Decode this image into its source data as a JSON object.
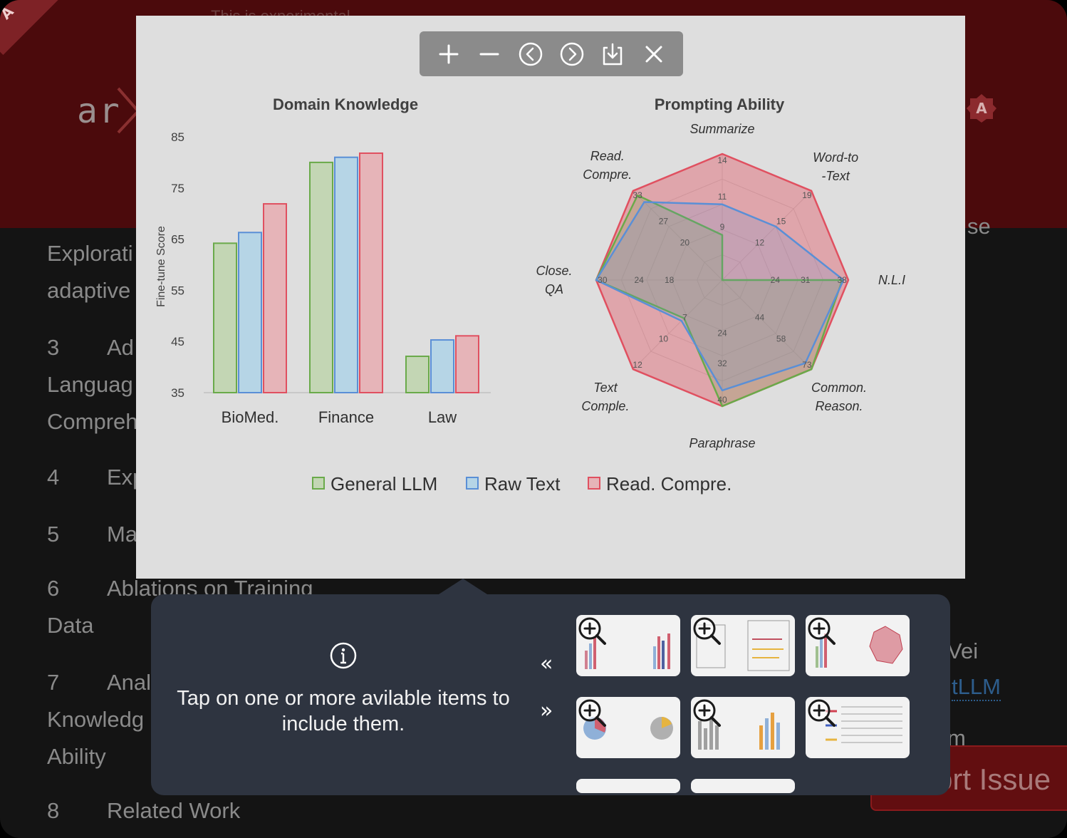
{
  "background_page": {
    "corner_badge": "A",
    "logo_text": "ar",
    "top_text": "This is experimental",
    "toc": [
      {
        "num": "",
        "lines": [
          "Explorati",
          "adaptive"
        ]
      },
      {
        "num": "3",
        "lines": [
          "Ad",
          "Languag",
          "Compreh"
        ]
      },
      {
        "num": "4",
        "lines": [
          "Exp"
        ]
      },
      {
        "num": "5",
        "lines": [
          "Ma"
        ]
      },
      {
        "num": "6",
        "lines": [
          "Ablations on Training",
          "Data"
        ]
      },
      {
        "num": "7",
        "lines": [
          "Anal",
          "Knowledg",
          "Ability"
        ]
      },
      {
        "num": "8",
        "lines": [
          "Related Work"
        ]
      }
    ],
    "right_fragments": {
      "se": "se",
      "wei": "Vei",
      "link": "tLLM",
      "m": "m"
    },
    "report_issue": "ort Issue"
  },
  "toolbar": {
    "zoom_in": "plus-icon",
    "zoom_out": "minus-icon",
    "previous": "chevron-left-circle-icon",
    "next": "chevron-right-circle-icon",
    "download": "download-icon",
    "close": "close-icon"
  },
  "figure": {
    "bar_chart": {
      "title": "Domain Knowledge",
      "ylabel": "Fine-tune Score",
      "yticks": [
        "85",
        "75",
        "65",
        "55",
        "45",
        "35"
      ],
      "ylim": [
        35,
        85
      ]
    },
    "radar_chart": {
      "title": "Prompting Ability",
      "axes": [
        {
          "label_lines": [
            "Summarize"
          ],
          "ticks": [
            "14",
            "11",
            "9"
          ]
        },
        {
          "label_lines": [
            "Word-to",
            "-Text"
          ],
          "ticks": [
            "19",
            "15",
            "12"
          ]
        },
        {
          "label_lines": [
            "N.L.I"
          ],
          "ticks": [
            "38",
            "31",
            "24"
          ]
        },
        {
          "label_lines": [
            "Common.",
            "Reason."
          ],
          "ticks": [
            "73",
            "58",
            "44"
          ]
        },
        {
          "label_lines": [
            "Paraphrase"
          ],
          "ticks": [
            "40",
            "32",
            "24"
          ]
        },
        {
          "label_lines": [
            "Text",
            "Comple."
          ],
          "ticks": [
            "12",
            "10",
            "7"
          ]
        },
        {
          "label_lines": [
            "Close.",
            "QA"
          ],
          "ticks": [
            "30",
            "24",
            "18"
          ]
        },
        {
          "label_lines": [
            "Read.",
            "Compre."
          ],
          "ticks": [
            "33",
            "27",
            "20"
          ]
        }
      ]
    },
    "legend": [
      "General LLM",
      "Raw Text",
      "Read. Compre."
    ]
  },
  "chart_data": [
    {
      "type": "bar",
      "title": "Domain Knowledge",
      "ylabel": "Fine-tune Score",
      "xlabel": "",
      "categories": [
        "BioMed.",
        "Finance",
        "Law"
      ],
      "ylim": [
        35,
        85
      ],
      "legend_position": "bottom",
      "series": [
        {
          "name": "General LLM",
          "values": [
            64.2,
            80.0,
            42.1
          ]
        },
        {
          "name": "Raw Text",
          "values": [
            66.3,
            81.0,
            45.3
          ]
        },
        {
          "name": "Read. Compre.",
          "values": [
            71.9,
            81.8,
            46.1
          ]
        }
      ]
    },
    {
      "type": "radar",
      "title": "Prompting Ability",
      "axes": [
        "Summarize",
        "Word-to-Text",
        "N.L.I",
        "Common. Reason.",
        "Paraphrase",
        "Text Comple.",
        "Close. QA",
        "Read. Compre."
      ],
      "axis_ranges": [
        [
          7,
          14
        ],
        [
          9,
          19
        ],
        [
          17,
          38
        ],
        [
          29,
          73
        ],
        [
          16,
          40
        ],
        [
          5,
          12
        ],
        [
          12,
          30
        ],
        [
          13,
          33
        ]
      ],
      "series": [
        {
          "name": "General LLM",
          "values": [
            9.5,
            8.5,
            37.0,
            73.0,
            40.5,
            8.0,
            30.0,
            32.0
          ]
        },
        {
          "name": "Raw Text",
          "values": [
            11.2,
            15.0,
            37.2,
            70.0,
            37.0,
            8.2,
            30.0,
            30.5
          ]
        },
        {
          "name": "Read. Compre.",
          "values": [
            14.0,
            19.0,
            38.0,
            74.0,
            40.0,
            12.0,
            30.0,
            33.0
          ]
        }
      ]
    }
  ],
  "colors": {
    "general": "#6aaa4a",
    "raw": "#5a8fd6",
    "read": "#e05060"
  },
  "panel": {
    "info_icon": "info-icon",
    "message": "Tap on one or more avilable items to include them.",
    "prev_glyph": "«",
    "next_glyph": "»",
    "zoom_icon": "zoom-in-icon",
    "thumbnails": [
      "figure-thumbnail-1",
      "figure-thumbnail-2",
      "figure-thumbnail-3",
      "figure-thumbnail-4",
      "figure-thumbnail-5",
      "figure-thumbnail-6"
    ]
  }
}
